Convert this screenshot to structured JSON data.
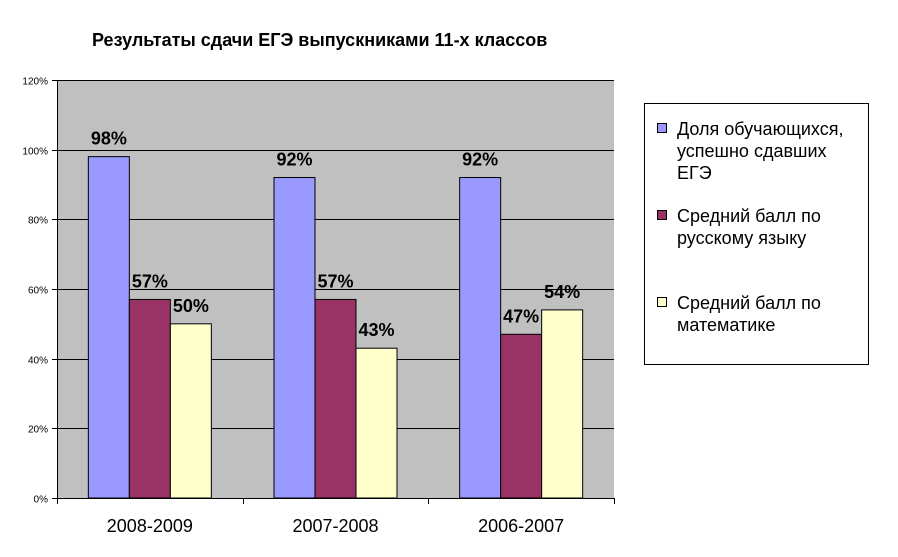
{
  "chart_data": {
    "type": "bar",
    "title": "Результаты сдачи ЕГЭ выпускниками 11-х классов",
    "categories": [
      "2008-2009",
      "2007-2008",
      "2006-2007"
    ],
    "series": [
      {
        "name": "Доля обучающихся, успешно сдавших ЕГЭ",
        "values": [
          98,
          92,
          92
        ],
        "labels": [
          "98%",
          "92%",
          "92%"
        ],
        "color": "#9999ff"
      },
      {
        "name": "Средний балл по русскому языку",
        "values": [
          57,
          57,
          47
        ],
        "labels": [
          "57%",
          "57%",
          "47%"
        ],
        "color": "#993366"
      },
      {
        "name": "Средний балл по математике",
        "values": [
          50,
          43,
          54
        ],
        "labels": [
          "50%",
          "43%",
          "54%"
        ],
        "color": "#ffffcc"
      }
    ],
    "ylim": [
      0,
      120
    ],
    "y_ticks": [
      0,
      20,
      40,
      60,
      80,
      100,
      120
    ],
    "y_tick_labels": [
      "0%",
      "20%",
      "40%",
      "60%",
      "80%",
      "100%",
      "120%"
    ],
    "xlabel": "",
    "ylabel": "",
    "grid": true,
    "plot_background": "#c0c0c0",
    "legend_position": "right"
  }
}
